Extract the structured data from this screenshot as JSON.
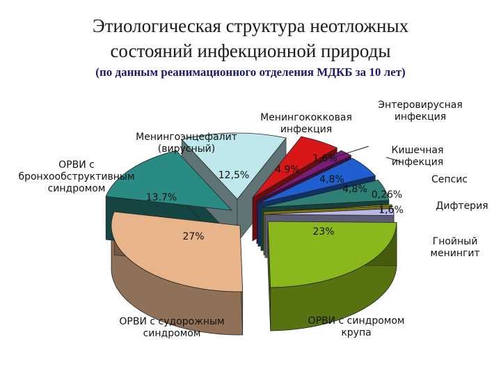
{
  "header": {
    "title_line1": "Этиологическая структура неотложных",
    "title_line2": "состояний инфекционной природы",
    "subtitle": "(по данным реанимационного отделения МДКБ за 10 лет)"
  },
  "chart_data": {
    "type": "pie",
    "title": "Этиологическая структура неотложных состояний инфекционной природы",
    "subtitle": "(по данным реанимационного отделения МДКБ за 10 лет)",
    "slices": [
      {
        "label": [
          "ОРВИ с судорожным",
          "синдромом"
        ],
        "value": 27,
        "value_label": "27%",
        "color": "#e8b48a"
      },
      {
        "label": [
          "ОРВИ с",
          "бронхообструктивным",
          "синдромом"
        ],
        "value": 13.7,
        "value_label": "13.7%",
        "color": "#2a8a84"
      },
      {
        "label": [
          "Менингоэнцефалит",
          "(вирусный)"
        ],
        "value": 12.5,
        "value_label": "12,5%",
        "color": "#bfe8ec"
      },
      {
        "label": [
          "Менингококковая",
          "инфекция"
        ],
        "value": 4.9,
        "value_label": "4.9%",
        "color": "#d81818"
      },
      {
        "label": [
          "Энтеровирусная",
          "инфекция"
        ],
        "value": 1.6,
        "value_label": "1,6%",
        "color": "#7a1c7a"
      },
      {
        "label": [
          "Кишечная",
          "инфекция"
        ],
        "value": 4.8,
        "value_label": "4,8%",
        "color": "#1f5fd0"
      },
      {
        "label": [
          "Сепсис"
        ],
        "value": 4.8,
        "value_label": "4,8%",
        "color": "#2e7f74"
      },
      {
        "label": [
          "Дифтерия"
        ],
        "value": 0.26,
        "value_label": "0,26%",
        "color": "#f0e020"
      },
      {
        "label": [
          "Гнойный",
          "менингит"
        ],
        "value": 1.6,
        "value_label": "1,6%",
        "color": "#b8b8e8"
      },
      {
        "label": [
          "ОРВИ с синдромом",
          "крупа"
        ],
        "value": 23,
        "value_label": "23%",
        "color": "#8ab81c"
      }
    ],
    "legend": "none"
  }
}
